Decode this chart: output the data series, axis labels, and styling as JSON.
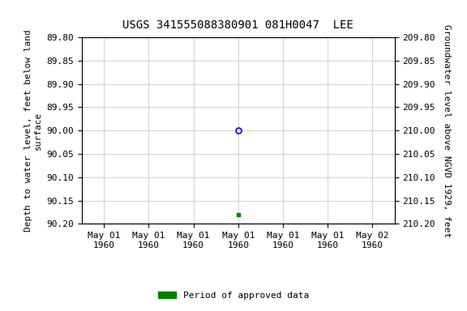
{
  "title": "USGS 341555088380901 081H0047  LEE",
  "ylabel_left": "Depth to water level, feet below land\nsurface",
  "ylabel_right": "Groundwater level above NGVD 1929, feet",
  "ylim_left": [
    89.8,
    90.2
  ],
  "ylim_right": [
    209.8,
    210.2
  ],
  "yticks_left": [
    89.8,
    89.85,
    89.9,
    89.95,
    90.0,
    90.05,
    90.1,
    90.15,
    90.2
  ],
  "yticks_right": [
    209.8,
    209.85,
    209.9,
    209.95,
    210.0,
    210.05,
    210.1,
    210.15,
    210.2
  ],
  "circle_point_x": 3,
  "circle_point_y": 90.0,
  "square_point_x": 3,
  "square_point_y": 90.18,
  "circle_color": "#0000ff",
  "square_color": "#008000",
  "background_color": "#ffffff",
  "grid_color": "#c0c0c0",
  "legend_label": "Period of approved data",
  "legend_color": "#008000",
  "font_color": "#000000",
  "title_fontsize": 10,
  "label_fontsize": 8,
  "tick_fontsize": 8,
  "x_tick_labels": [
    "May 01\n1960",
    "May 01\n1960",
    "May 01\n1960",
    "May 01\n1960",
    "May 01\n1960",
    "May 01\n1960",
    "May 02\n1960"
  ],
  "xlim": [
    -0.5,
    6.5
  ],
  "xticks": [
    0,
    1,
    2,
    3,
    4,
    5,
    6
  ]
}
